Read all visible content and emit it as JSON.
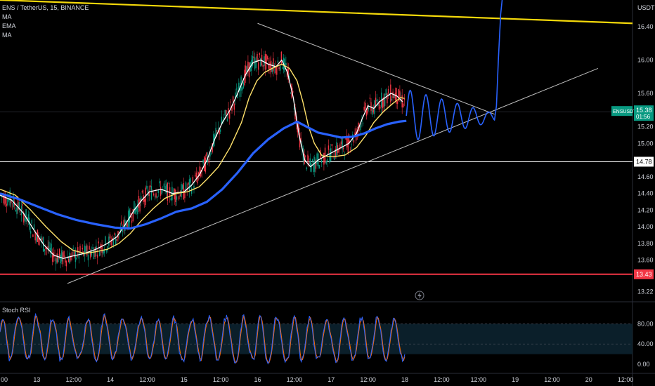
{
  "header": {
    "symbol_line": "ENS / TetherUS, 15, BINANCE",
    "indicators": [
      "MA",
      "EMA",
      "MA"
    ]
  },
  "chart_data": {
    "type": "line",
    "price_axis": {
      "unit": "USDT",
      "ticks": [
        16.4,
        16.0,
        15.6,
        15.2,
        15.0,
        14.6,
        14.4,
        14.2,
        14.0,
        13.8,
        13.6,
        13.22
      ],
      "tick_labels": [
        "16.40",
        "16.00",
        "15.60",
        "15.20",
        "15.00",
        "14.60",
        "14.40",
        "14.20",
        "14.00",
        "13.80",
        "13.60",
        "13.22"
      ],
      "range": [
        13.1,
        16.72
      ]
    },
    "time_axis": {
      "labels": [
        "00",
        "13",
        "12:00",
        "14",
        "12:00",
        "15",
        "12:00",
        "16",
        "12:00",
        "17",
        "12:00",
        "18",
        "12:00",
        "12:00",
        "19",
        "12:00",
        "20",
        "12:00"
      ],
      "positions": [
        0,
        96,
        192,
        288,
        384,
        480,
        576,
        672,
        768,
        864,
        960,
        1056,
        1152,
        1248,
        1344,
        1440,
        1536,
        1632
      ],
      "range": [
        0,
        1650
      ]
    },
    "last_price": {
      "symbol": "ENSUSDT",
      "value": 15.38,
      "countdown": "01:56",
      "color": "#089981"
    },
    "levels": [
      {
        "value": 14.78,
        "label": "14.78",
        "color": "#ffffff"
      },
      {
        "value": 13.43,
        "label": "13.43",
        "color": "#f23645"
      }
    ],
    "trendlines": [
      {
        "name": "descending-resistance",
        "color": "#bfbfbf",
        "points": [
          [
            672,
            16.44
          ],
          [
            1290,
            15.35
          ]
        ]
      },
      {
        "name": "ascending-support",
        "color": "#bfbfbf",
        "points": [
          [
            176,
            13.32
          ],
          [
            1560,
            15.9
          ]
        ]
      },
      {
        "name": "long-resistance",
        "color": "#f5d90a",
        "points": [
          [
            0,
            16.72
          ],
          [
            1650,
            16.44
          ]
        ]
      }
    ],
    "series": [
      {
        "name": "MA",
        "color": "#ffffff",
        "points": [
          [
            0,
            14.38
          ],
          [
            30,
            14.32
          ],
          [
            60,
            14.17
          ],
          [
            90,
            13.95
          ],
          [
            115,
            13.78
          ],
          [
            140,
            13.66
          ],
          [
            165,
            13.62
          ],
          [
            190,
            13.65
          ],
          [
            220,
            13.68
          ],
          [
            250,
            13.73
          ],
          [
            280,
            13.8
          ],
          [
            305,
            13.88
          ],
          [
            330,
            14.05
          ],
          [
            350,
            14.2
          ],
          [
            370,
            14.32
          ],
          [
            390,
            14.42
          ],
          [
            420,
            14.45
          ],
          [
            450,
            14.4
          ],
          [
            480,
            14.42
          ],
          [
            500,
            14.5
          ],
          [
            520,
            14.62
          ],
          [
            540,
            14.8
          ],
          [
            560,
            15.05
          ],
          [
            580,
            15.25
          ],
          [
            600,
            15.4
          ],
          [
            620,
            15.6
          ],
          [
            640,
            15.82
          ],
          [
            660,
            15.97
          ],
          [
            680,
            16.0
          ],
          [
            700,
            15.95
          ],
          [
            720,
            15.92
          ],
          [
            735,
            16.0
          ],
          [
            750,
            15.85
          ],
          [
            765,
            15.55
          ],
          [
            780,
            15.1
          ],
          [
            795,
            14.8
          ],
          [
            810,
            14.72
          ],
          [
            830,
            14.8
          ],
          [
            850,
            14.85
          ],
          [
            870,
            14.9
          ],
          [
            890,
            14.95
          ],
          [
            910,
            15.0
          ],
          [
            930,
            15.12
          ],
          [
            945,
            15.3
          ],
          [
            960,
            15.45
          ],
          [
            975,
            15.42
          ],
          [
            990,
            15.5
          ],
          [
            1005,
            15.55
          ],
          [
            1020,
            15.6
          ],
          [
            1035,
            15.57
          ],
          [
            1050,
            15.5
          ]
        ]
      },
      {
        "name": "EMA",
        "color": "#ffe26b",
        "points": [
          [
            0,
            14.45
          ],
          [
            40,
            14.38
          ],
          [
            80,
            14.2
          ],
          [
            120,
            14.0
          ],
          [
            160,
            13.82
          ],
          [
            190,
            13.72
          ],
          [
            220,
            13.68
          ],
          [
            250,
            13.7
          ],
          [
            280,
            13.73
          ],
          [
            310,
            13.8
          ],
          [
            340,
            13.92
          ],
          [
            370,
            14.08
          ],
          [
            400,
            14.22
          ],
          [
            430,
            14.34
          ],
          [
            460,
            14.4
          ],
          [
            490,
            14.42
          ],
          [
            520,
            14.48
          ],
          [
            540,
            14.57
          ],
          [
            570,
            14.72
          ],
          [
            600,
            14.95
          ],
          [
            630,
            15.25
          ],
          [
            650,
            15.55
          ],
          [
            670,
            15.75
          ],
          [
            690,
            15.85
          ],
          [
            710,
            15.9
          ],
          [
            735,
            15.95
          ],
          [
            755,
            15.9
          ],
          [
            775,
            15.75
          ],
          [
            790,
            15.5
          ],
          [
            805,
            15.2
          ],
          [
            820,
            15.0
          ],
          [
            840,
            14.85
          ],
          [
            870,
            14.84
          ],
          [
            900,
            14.86
          ],
          [
            930,
            14.95
          ],
          [
            955,
            15.1
          ],
          [
            975,
            15.25
          ],
          [
            1000,
            15.38
          ],
          [
            1025,
            15.48
          ],
          [
            1045,
            15.55
          ],
          [
            1055,
            15.54
          ]
        ]
      },
      {
        "name": "MA",
        "color": "#2962ff",
        "points": [
          [
            0,
            14.4
          ],
          [
            50,
            14.33
          ],
          [
            100,
            14.24
          ],
          [
            150,
            14.15
          ],
          [
            200,
            14.08
          ],
          [
            250,
            14.03
          ],
          [
            300,
            13.99
          ],
          [
            340,
            13.98
          ],
          [
            380,
            14.03
          ],
          [
            420,
            14.1
          ],
          [
            460,
            14.18
          ],
          [
            500,
            14.22
          ],
          [
            540,
            14.3
          ],
          [
            580,
            14.45
          ],
          [
            620,
            14.65
          ],
          [
            660,
            14.88
          ],
          [
            700,
            15.05
          ],
          [
            740,
            15.18
          ],
          [
            775,
            15.26
          ],
          [
            800,
            15.2
          ],
          [
            830,
            15.13
          ],
          [
            860,
            15.1
          ],
          [
            890,
            15.07
          ],
          [
            920,
            15.08
          ],
          [
            950,
            15.12
          ],
          [
            980,
            15.18
          ],
          [
            1010,
            15.23
          ],
          [
            1040,
            15.26
          ],
          [
            1060,
            15.27
          ]
        ]
      }
    ],
    "drawing": {
      "name": "projected-path",
      "color": "#2962ff"
    }
  },
  "rsi": {
    "label": "Stoch RSI",
    "ticks": [
      80.0,
      40.0,
      0.0
    ],
    "tick_labels": [
      "80.00",
      "40.00",
      "0.00"
    ],
    "band": [
      20,
      80
    ],
    "colors": {
      "k": "#2962ff",
      "d": "#ff6d00"
    }
  }
}
